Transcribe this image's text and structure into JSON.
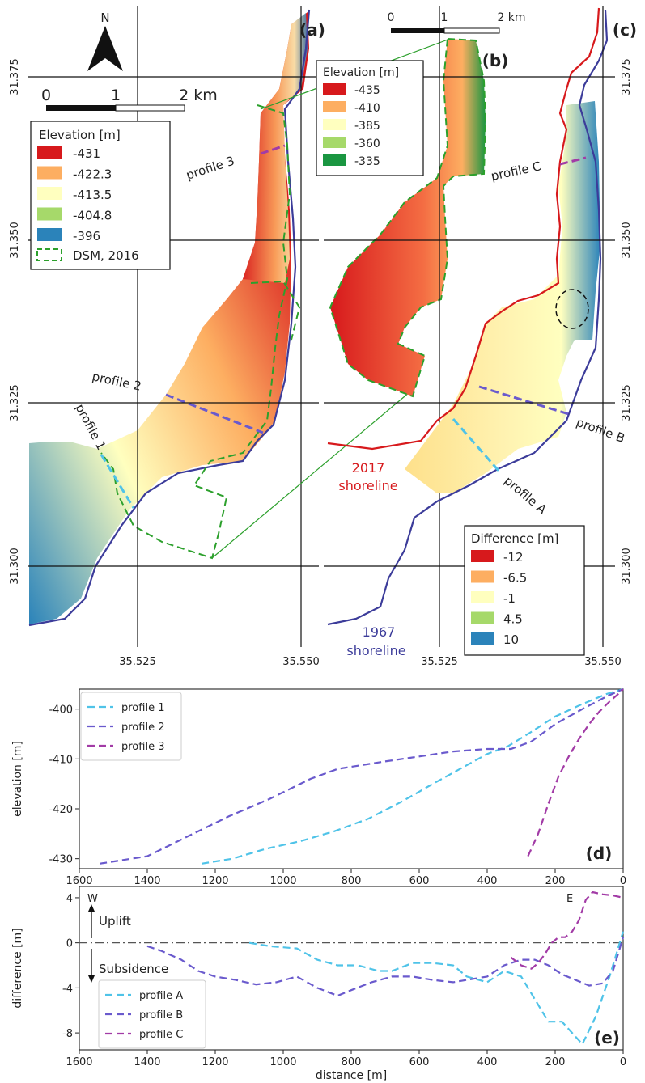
{
  "maps": {
    "panel_a": {
      "label": "(a)",
      "north": "N",
      "scalebar": [
        "0",
        "1",
        "2 km"
      ],
      "legend_title": "Elevation [m]",
      "legend": [
        "-431",
        "-422.3",
        "-413.5",
        "-404.8",
        "-396"
      ],
      "legend_colors": [
        "#d7191c",
        "#fdae61",
        "#ffffbf",
        "#a6d96a",
        "#2b83ba"
      ],
      "dsm_label": "DSM, 2016",
      "profiles": [
        "profile 1",
        "profile 2",
        "profile 3"
      ],
      "lat_ticks": [
        "31.375",
        "31.350",
        "31.325",
        "31.300"
      ],
      "lon_ticks": [
        "35.525",
        "35.550"
      ]
    },
    "panel_b": {
      "label": "(b)",
      "scalebar": [
        "0",
        "1",
        "2 km"
      ],
      "legend_title": "Elevation [m]",
      "legend": [
        "-435",
        "-410",
        "-385",
        "-360",
        "-335"
      ],
      "legend_colors": [
        "#d7191c",
        "#fdae61",
        "#ffffbf",
        "#a6d96a",
        "#1a9641"
      ]
    },
    "panel_c": {
      "label": "(c)",
      "legend_title": "Difference [m]",
      "legend": [
        "-12",
        "-6.5",
        "-1",
        "4.5",
        "10"
      ],
      "legend_colors": [
        "#d7191c",
        "#fdae61",
        "#ffffbf",
        "#a6d96a",
        "#2b83ba"
      ],
      "profiles": [
        "profile A",
        "profile B",
        "profile C"
      ],
      "shoreline_2017": [
        "2017",
        "shoreline"
      ],
      "shoreline_1967": [
        "1967",
        "shoreline"
      ],
      "lat_ticks": [
        "31.375",
        "31.350",
        "31.325",
        "31.300"
      ],
      "lon_ticks": [
        "35.525",
        "35.550"
      ]
    }
  },
  "chart_data": [
    {
      "type": "line",
      "panel": "(d)",
      "xlabel": "",
      "ylabel": "elevation [m]",
      "xlim": [
        1600,
        0
      ],
      "ylim": [
        -432,
        -396
      ],
      "x_ticks": [
        1600,
        1400,
        1200,
        1000,
        800,
        600,
        400,
        200,
        0
      ],
      "y_ticks": [
        -400,
        -410,
        -420,
        -430
      ],
      "legend_position": "top-left",
      "series": [
        {
          "name": "profile 1",
          "color": "#4fc3e8",
          "x": [
            1240,
            1150,
            1050,
            950,
            850,
            750,
            650,
            560,
            480,
            400,
            340,
            280,
            200,
            120,
            50,
            0
          ],
          "y": [
            -431,
            -430,
            -428,
            -426.5,
            -424.5,
            -422,
            -418.5,
            -415,
            -412,
            -409,
            -407.5,
            -405,
            -401.5,
            -399,
            -397,
            -396
          ]
        },
        {
          "name": "profile 2",
          "color": "#6a5acd",
          "x": [
            1540,
            1400,
            1280,
            1160,
            1040,
            920,
            840,
            700,
            600,
            500,
            400,
            330,
            270,
            200,
            120,
            50,
            0
          ],
          "y": [
            -431,
            -429.5,
            -425.5,
            -421.5,
            -418,
            -414,
            -412,
            -410.5,
            -409.5,
            -408.5,
            -408,
            -408,
            -406.5,
            -403,
            -400,
            -397.5,
            -396
          ]
        },
        {
          "name": "profile 3",
          "color": "#a23ba6",
          "x": [
            280,
            250,
            220,
            190,
            160,
            130,
            100,
            70,
            40,
            15,
            0
          ],
          "y": [
            -429.5,
            -425,
            -419,
            -413.5,
            -409.5,
            -406,
            -403,
            -400.5,
            -398.5,
            -397,
            -396
          ]
        }
      ]
    },
    {
      "type": "line",
      "panel": "(e)",
      "xlabel": "distance [m]",
      "ylabel": "difference [m]",
      "xlim": [
        1600,
        0
      ],
      "ylim": [
        -9.5,
        5
      ],
      "x_ticks": [
        1600,
        1400,
        1200,
        1000,
        800,
        600,
        400,
        200,
        0
      ],
      "y_ticks": [
        4,
        0,
        -4,
        -8
      ],
      "legend_position": "bottom-left",
      "annotations": {
        "west": "W",
        "east": "E",
        "uplift": "Uplift",
        "subsidence": "Subsidence"
      },
      "series": [
        {
          "name": "profile A",
          "color": "#4fc3e8",
          "x": [
            1100,
            1040,
            960,
            900,
            840,
            780,
            720,
            680,
            620,
            560,
            500,
            460,
            400,
            350,
            300,
            260,
            220,
            180,
            150,
            120,
            80,
            40,
            0
          ],
          "y": [
            0,
            -0.3,
            -0.5,
            -1.5,
            -2,
            -2,
            -2.5,
            -2.5,
            -1.8,
            -1.8,
            -2,
            -3,
            -3.5,
            -2.5,
            -3,
            -5,
            -7,
            -7,
            -8,
            -9,
            -6.5,
            -3,
            1
          ]
        },
        {
          "name": "profile B",
          "color": "#6a5acd",
          "x": [
            1400,
            1360,
            1300,
            1250,
            1200,
            1140,
            1080,
            1020,
            960,
            900,
            840,
            800,
            740,
            680,
            620,
            560,
            500,
            440,
            400,
            350,
            300,
            260,
            220,
            180,
            140,
            100,
            60,
            30,
            0
          ],
          "y": [
            -0.3,
            -0.7,
            -1.5,
            -2.5,
            -3,
            -3.3,
            -3.7,
            -3.5,
            -3,
            -4,
            -4.7,
            -4.2,
            -3.5,
            -3,
            -3,
            -3.3,
            -3.5,
            -3.2,
            -3,
            -2,
            -1.5,
            -1.5,
            -2,
            -2.8,
            -3.3,
            -3.8,
            -3.6,
            -2.5,
            0.5
          ]
        },
        {
          "name": "profile C",
          "color": "#a23ba6",
          "x": [
            330,
            300,
            270,
            250,
            230,
            210,
            190,
            170,
            150,
            130,
            110,
            90,
            60,
            30,
            0
          ],
          "y": [
            -1.3,
            -2,
            -2.3,
            -1.8,
            -1,
            0,
            0.5,
            0.5,
            1,
            2,
            3.8,
            4.5,
            4.3,
            4.2,
            4
          ]
        }
      ]
    }
  ]
}
